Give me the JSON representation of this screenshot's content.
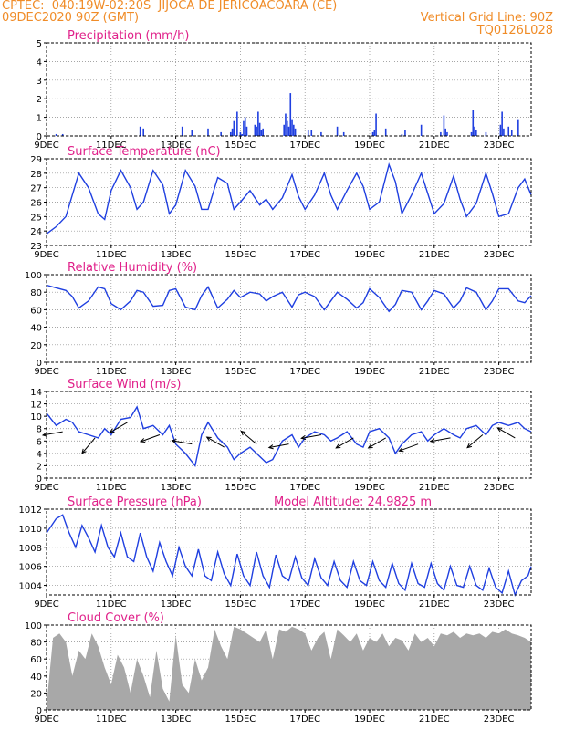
{
  "header": {
    "line1": "CPTEC:  040:19W-02:20S  JIJOCA DE JERICOACOARA (CE)",
    "line2_left": "09DEC2020 90Z (GMT)",
    "line2_right": "Vertical Grid Line: 90Z",
    "line3_right": "TQ0126L028"
  },
  "colors": {
    "header": "#f08c28",
    "title": "#e0218a",
    "series": "#1f3fe0",
    "cloud": "#a8a8a8",
    "arrow": "#000000"
  },
  "x_ticks": [
    "9DEC",
    "11DEC",
    "13DEC",
    "15DEC",
    "17DEC",
    "19DEC",
    "21DEC",
    "23DEC"
  ],
  "chart_data": [
    {
      "type": "bar",
      "title": "Precipitation (mm/h)",
      "x_range": [
        0,
        15
      ],
      "ylim": [
        0,
        5
      ],
      "yticks": [
        0,
        1,
        2,
        3,
        4,
        5
      ],
      "x": [
        0.3,
        0.5,
        2.9,
        3.0,
        4.2,
        4.5,
        5.0,
        5.4,
        5.7,
        5.75,
        5.8,
        5.9,
        6.0,
        6.05,
        6.1,
        6.15,
        6.2,
        6.45,
        6.5,
        6.55,
        6.6,
        6.65,
        6.7,
        7.35,
        7.4,
        7.45,
        7.5,
        7.55,
        7.6,
        7.65,
        7.7,
        8.1,
        8.2,
        8.5,
        9.0,
        9.2,
        10.1,
        10.15,
        10.2,
        10.5,
        11.0,
        11.1,
        11.6,
        12.2,
        12.3,
        12.35,
        12.4,
        13.15,
        13.2,
        13.25,
        13.3,
        13.6,
        14.05,
        14.1,
        14.15,
        14.3,
        14.4,
        14.6
      ],
      "values": [
        0.1,
        0.1,
        0.5,
        0.4,
        0.5,
        0.3,
        0.4,
        0.2,
        0.2,
        0.4,
        0.8,
        1.3,
        0.2,
        0.1,
        0.8,
        1.0,
        0.5,
        0.6,
        0.5,
        1.3,
        0.7,
        0.3,
        0.4,
        0.6,
        1.2,
        0.8,
        0.5,
        2.3,
        0.9,
        0.6,
        0.4,
        0.3,
        0.3,
        0.2,
        0.5,
        0.2,
        0.2,
        0.3,
        1.2,
        0.4,
        0.1,
        0.3,
        0.6,
        0.2,
        1.1,
        0.4,
        0.2,
        0.2,
        1.4,
        0.5,
        0.3,
        0.2,
        0.6,
        1.3,
        0.4,
        0.5,
        0.3,
        0.9
      ]
    },
    {
      "type": "line",
      "title": "Surface Temperature (nC)",
      "x_range": [
        0,
        15
      ],
      "ylim": [
        23,
        29
      ],
      "yticks": [
        23,
        24,
        25,
        26,
        27,
        28,
        29
      ],
      "x": [
        0,
        0.3,
        0.6,
        0.8,
        1.0,
        1.3,
        1.6,
        1.8,
        2.0,
        2.3,
        2.6,
        2.8,
        3.0,
        3.3,
        3.6,
        3.8,
        4.0,
        4.3,
        4.6,
        4.8,
        5.0,
        5.3,
        5.6,
        5.8,
        6.0,
        6.3,
        6.6,
        6.8,
        7.0,
        7.3,
        7.6,
        7.8,
        8.0,
        8.3,
        8.6,
        8.8,
        9.0,
        9.3,
        9.6,
        9.8,
        10.0,
        10.3,
        10.6,
        10.8,
        11.0,
        11.3,
        11.6,
        11.8,
        12.0,
        12.3,
        12.6,
        12.8,
        13.0,
        13.3,
        13.6,
        13.8,
        14.0,
        14.3,
        14.6,
        14.8,
        15.0
      ],
      "values": [
        23.8,
        24.3,
        25.0,
        26.5,
        28.0,
        27.0,
        25.2,
        24.8,
        26.8,
        28.2,
        27.0,
        25.5,
        26.0,
        28.2,
        27.2,
        25.2,
        25.8,
        28.2,
        27.1,
        25.5,
        25.5,
        27.7,
        27.3,
        25.5,
        26.0,
        26.8,
        25.8,
        26.2,
        25.5,
        26.3,
        27.9,
        26.4,
        25.5,
        26.5,
        28.0,
        26.5,
        25.5,
        26.8,
        28.0,
        27.1,
        25.5,
        26.0,
        28.6,
        27.4,
        25.2,
        26.5,
        28.0,
        26.6,
        25.2,
        25.9,
        27.8,
        26.2,
        25.0,
        25.9,
        28.0,
        26.6,
        25.0,
        25.2,
        27.0,
        27.6,
        26.5
      ]
    },
    {
      "type": "line",
      "title": "Relative Humidity (%)",
      "x_range": [
        0,
        15
      ],
      "ylim": [
        0,
        100
      ],
      "yticks": [
        0,
        20,
        40,
        60,
        80,
        100
      ],
      "x": [
        0,
        0.3,
        0.6,
        0.8,
        1.0,
        1.3,
        1.6,
        1.8,
        2.0,
        2.3,
        2.6,
        2.8,
        3.0,
        3.3,
        3.6,
        3.8,
        4.0,
        4.3,
        4.6,
        4.8,
        5.0,
        5.3,
        5.6,
        5.8,
        6.0,
        6.3,
        6.6,
        6.8,
        7.0,
        7.3,
        7.6,
        7.8,
        8.0,
        8.3,
        8.6,
        8.8,
        9.0,
        9.3,
        9.6,
        9.8,
        10.0,
        10.3,
        10.6,
        10.8,
        11.0,
        11.3,
        11.6,
        11.8,
        12.0,
        12.3,
        12.6,
        12.8,
        13.0,
        13.3,
        13.6,
        13.8,
        14.0,
        14.3,
        14.6,
        14.8,
        15.0
      ],
      "values": [
        88,
        85,
        82,
        75,
        62,
        70,
        86,
        84,
        67,
        60,
        70,
        82,
        80,
        64,
        65,
        82,
        84,
        63,
        60,
        76,
        86,
        62,
        72,
        82,
        74,
        80,
        78,
        70,
        75,
        80,
        63,
        77,
        80,
        75,
        60,
        70,
        80,
        72,
        62,
        68,
        84,
        74,
        58,
        66,
        82,
        80,
        60,
        70,
        82,
        78,
        62,
        70,
        85,
        80,
        60,
        70,
        84,
        84,
        70,
        68,
        76
      ]
    },
    {
      "type": "line",
      "title": "Surface Wind (m/s)",
      "x_range": [
        0,
        15
      ],
      "ylim": [
        0,
        14
      ],
      "yticks": [
        0,
        2,
        4,
        6,
        8,
        10,
        12,
        14
      ],
      "x": [
        0,
        0.3,
        0.6,
        0.8,
        1.0,
        1.3,
        1.6,
        1.8,
        2.0,
        2.3,
        2.6,
        2.8,
        3.0,
        3.3,
        3.6,
        3.8,
        4.0,
        4.3,
        4.6,
        4.8,
        5.0,
        5.3,
        5.6,
        5.8,
        6.0,
        6.3,
        6.6,
        6.8,
        7.0,
        7.3,
        7.6,
        7.8,
        8.0,
        8.3,
        8.6,
        8.8,
        9.0,
        9.3,
        9.6,
        9.8,
        10.0,
        10.3,
        10.6,
        10.8,
        11.0,
        11.3,
        11.6,
        11.8,
        12.0,
        12.3,
        12.6,
        12.8,
        13.0,
        13.3,
        13.6,
        13.8,
        14.0,
        14.3,
        14.6,
        14.8,
        15.0
      ],
      "values": [
        10.5,
        8.5,
        9.5,
        9.0,
        7.5,
        7.0,
        6.5,
        8.0,
        7.0,
        9.5,
        9.8,
        11.5,
        8.0,
        8.5,
        7.0,
        8.5,
        5.5,
        4.0,
        2.0,
        7.0,
        9.0,
        6.5,
        5.0,
        3.0,
        4.0,
        5.0,
        3.5,
        2.5,
        3.0,
        6.0,
        7.0,
        5.0,
        6.5,
        7.5,
        7.0,
        6.0,
        6.5,
        7.5,
        5.5,
        5.0,
        7.5,
        8.0,
        6.5,
        4.0,
        5.5,
        7.0,
        7.5,
        6.0,
        7.0,
        8.0,
        7.0,
        6.5,
        8.0,
        8.5,
        7.0,
        8.5,
        9.0,
        8.5,
        9.0,
        8.0,
        7.5
      ],
      "arrow_times": [
        0.5,
        1.5,
        2.5,
        3.5,
        4.5,
        5.5,
        6.5,
        7.5,
        8.5,
        9.5,
        10.5,
        11.5,
        12.5,
        13.5,
        14.5
      ],
      "arrow_speeds": [
        7.5,
        6.5,
        9.0,
        7.0,
        5.5,
        5.0,
        5.5,
        5.5,
        7.0,
        6.5,
        6.5,
        5.5,
        6.5,
        7.0,
        6.5
      ],
      "arrow_dirs_deg": [
        100,
        140,
        120,
        110,
        80,
        60,
        50,
        100,
        100,
        120,
        120,
        110,
        100,
        130,
        60
      ]
    },
    {
      "type": "line",
      "title": "Surface Pressure (hPa)",
      "annotation": "Model Altitude: 24.9825 m",
      "x_range": [
        0,
        15
      ],
      "ylim": [
        1003,
        1012
      ],
      "yticks": [
        1004,
        1006,
        1008,
        1010,
        1012
      ],
      "x": [
        0,
        0.3,
        0.5,
        0.7,
        0.9,
        1.1,
        1.3,
        1.5,
        1.7,
        1.9,
        2.1,
        2.3,
        2.5,
        2.7,
        2.9,
        3.1,
        3.3,
        3.5,
        3.7,
        3.9,
        4.1,
        4.3,
        4.5,
        4.7,
        4.9,
        5.1,
        5.3,
        5.5,
        5.7,
        5.9,
        6.1,
        6.3,
        6.5,
        6.7,
        6.9,
        7.1,
        7.3,
        7.5,
        7.7,
        7.9,
        8.1,
        8.3,
        8.5,
        8.7,
        8.9,
        9.1,
        9.3,
        9.5,
        9.7,
        9.9,
        10.1,
        10.3,
        10.5,
        10.7,
        10.9,
        11.1,
        11.3,
        11.5,
        11.7,
        11.9,
        12.1,
        12.3,
        12.5,
        12.7,
        12.9,
        13.1,
        13.3,
        13.5,
        13.7,
        13.9,
        14.1,
        14.3,
        14.5,
        14.7,
        14.9,
        15.0
      ],
      "values": [
        1009.5,
        1011.0,
        1011.4,
        1009.5,
        1008.0,
        1010.3,
        1009.0,
        1007.5,
        1010.3,
        1008.0,
        1007.0,
        1009.5,
        1007.0,
        1006.5,
        1009.5,
        1007.0,
        1005.5,
        1008.5,
        1006.5,
        1005.0,
        1008.0,
        1006.0,
        1005.0,
        1007.8,
        1005.0,
        1004.5,
        1007.5,
        1005.2,
        1004.0,
        1007.3,
        1005.0,
        1004.0,
        1007.5,
        1005.0,
        1003.8,
        1007.2,
        1005.0,
        1004.5,
        1007.0,
        1004.8,
        1004.0,
        1006.8,
        1004.8,
        1004.0,
        1006.5,
        1004.5,
        1003.8,
        1006.5,
        1004.5,
        1004.0,
        1006.5,
        1004.5,
        1003.8,
        1006.3,
        1004.2,
        1003.5,
        1006.3,
        1004.2,
        1003.8,
        1006.3,
        1004.2,
        1003.5,
        1006.0,
        1004.0,
        1003.8,
        1006.0,
        1004.0,
        1003.5,
        1005.8,
        1003.8,
        1003.2,
        1005.5,
        1003.0,
        1004.5,
        1005.0,
        1006.0
      ]
    },
    {
      "type": "area",
      "title": "Cloud Cover (%)",
      "x_range": [
        0,
        15
      ],
      "ylim": [
        0,
        100
      ],
      "yticks": [
        0,
        20,
        40,
        60,
        80,
        100
      ],
      "x": [
        0,
        0.2,
        0.4,
        0.6,
        0.8,
        1.0,
        1.2,
        1.4,
        1.6,
        1.8,
        2.0,
        2.2,
        2.4,
        2.6,
        2.8,
        3.0,
        3.2,
        3.4,
        3.6,
        3.8,
        4.0,
        4.2,
        4.4,
        4.6,
        4.8,
        5.0,
        5.2,
        5.4,
        5.6,
        5.8,
        6.0,
        6.2,
        6.4,
        6.6,
        6.8,
        7.0,
        7.2,
        7.4,
        7.6,
        7.8,
        8.0,
        8.2,
        8.4,
        8.6,
        8.8,
        9.0,
        9.2,
        9.4,
        9.6,
        9.8,
        10.0,
        10.2,
        10.4,
        10.6,
        10.8,
        11.0,
        11.2,
        11.4,
        11.6,
        11.8,
        12.0,
        12.2,
        12.4,
        12.6,
        12.8,
        13.0,
        13.2,
        13.4,
        13.6,
        13.8,
        14.0,
        14.2,
        14.4,
        14.6,
        14.8,
        15.0
      ],
      "values": [
        5,
        85,
        90,
        80,
        40,
        70,
        60,
        90,
        75,
        50,
        30,
        65,
        50,
        20,
        60,
        40,
        15,
        70,
        25,
        10,
        88,
        30,
        20,
        60,
        35,
        50,
        95,
        75,
        60,
        98,
        95,
        90,
        85,
        80,
        95,
        60,
        95,
        92,
        98,
        95,
        90,
        70,
        85,
        92,
        60,
        95,
        88,
        80,
        90,
        70,
        85,
        80,
        90,
        75,
        85,
        82,
        70,
        90,
        80,
        85,
        75,
        90,
        88,
        92,
        85,
        90,
        88,
        90,
        85,
        92,
        90,
        95,
        90,
        88,
        85,
        80
      ]
    }
  ]
}
